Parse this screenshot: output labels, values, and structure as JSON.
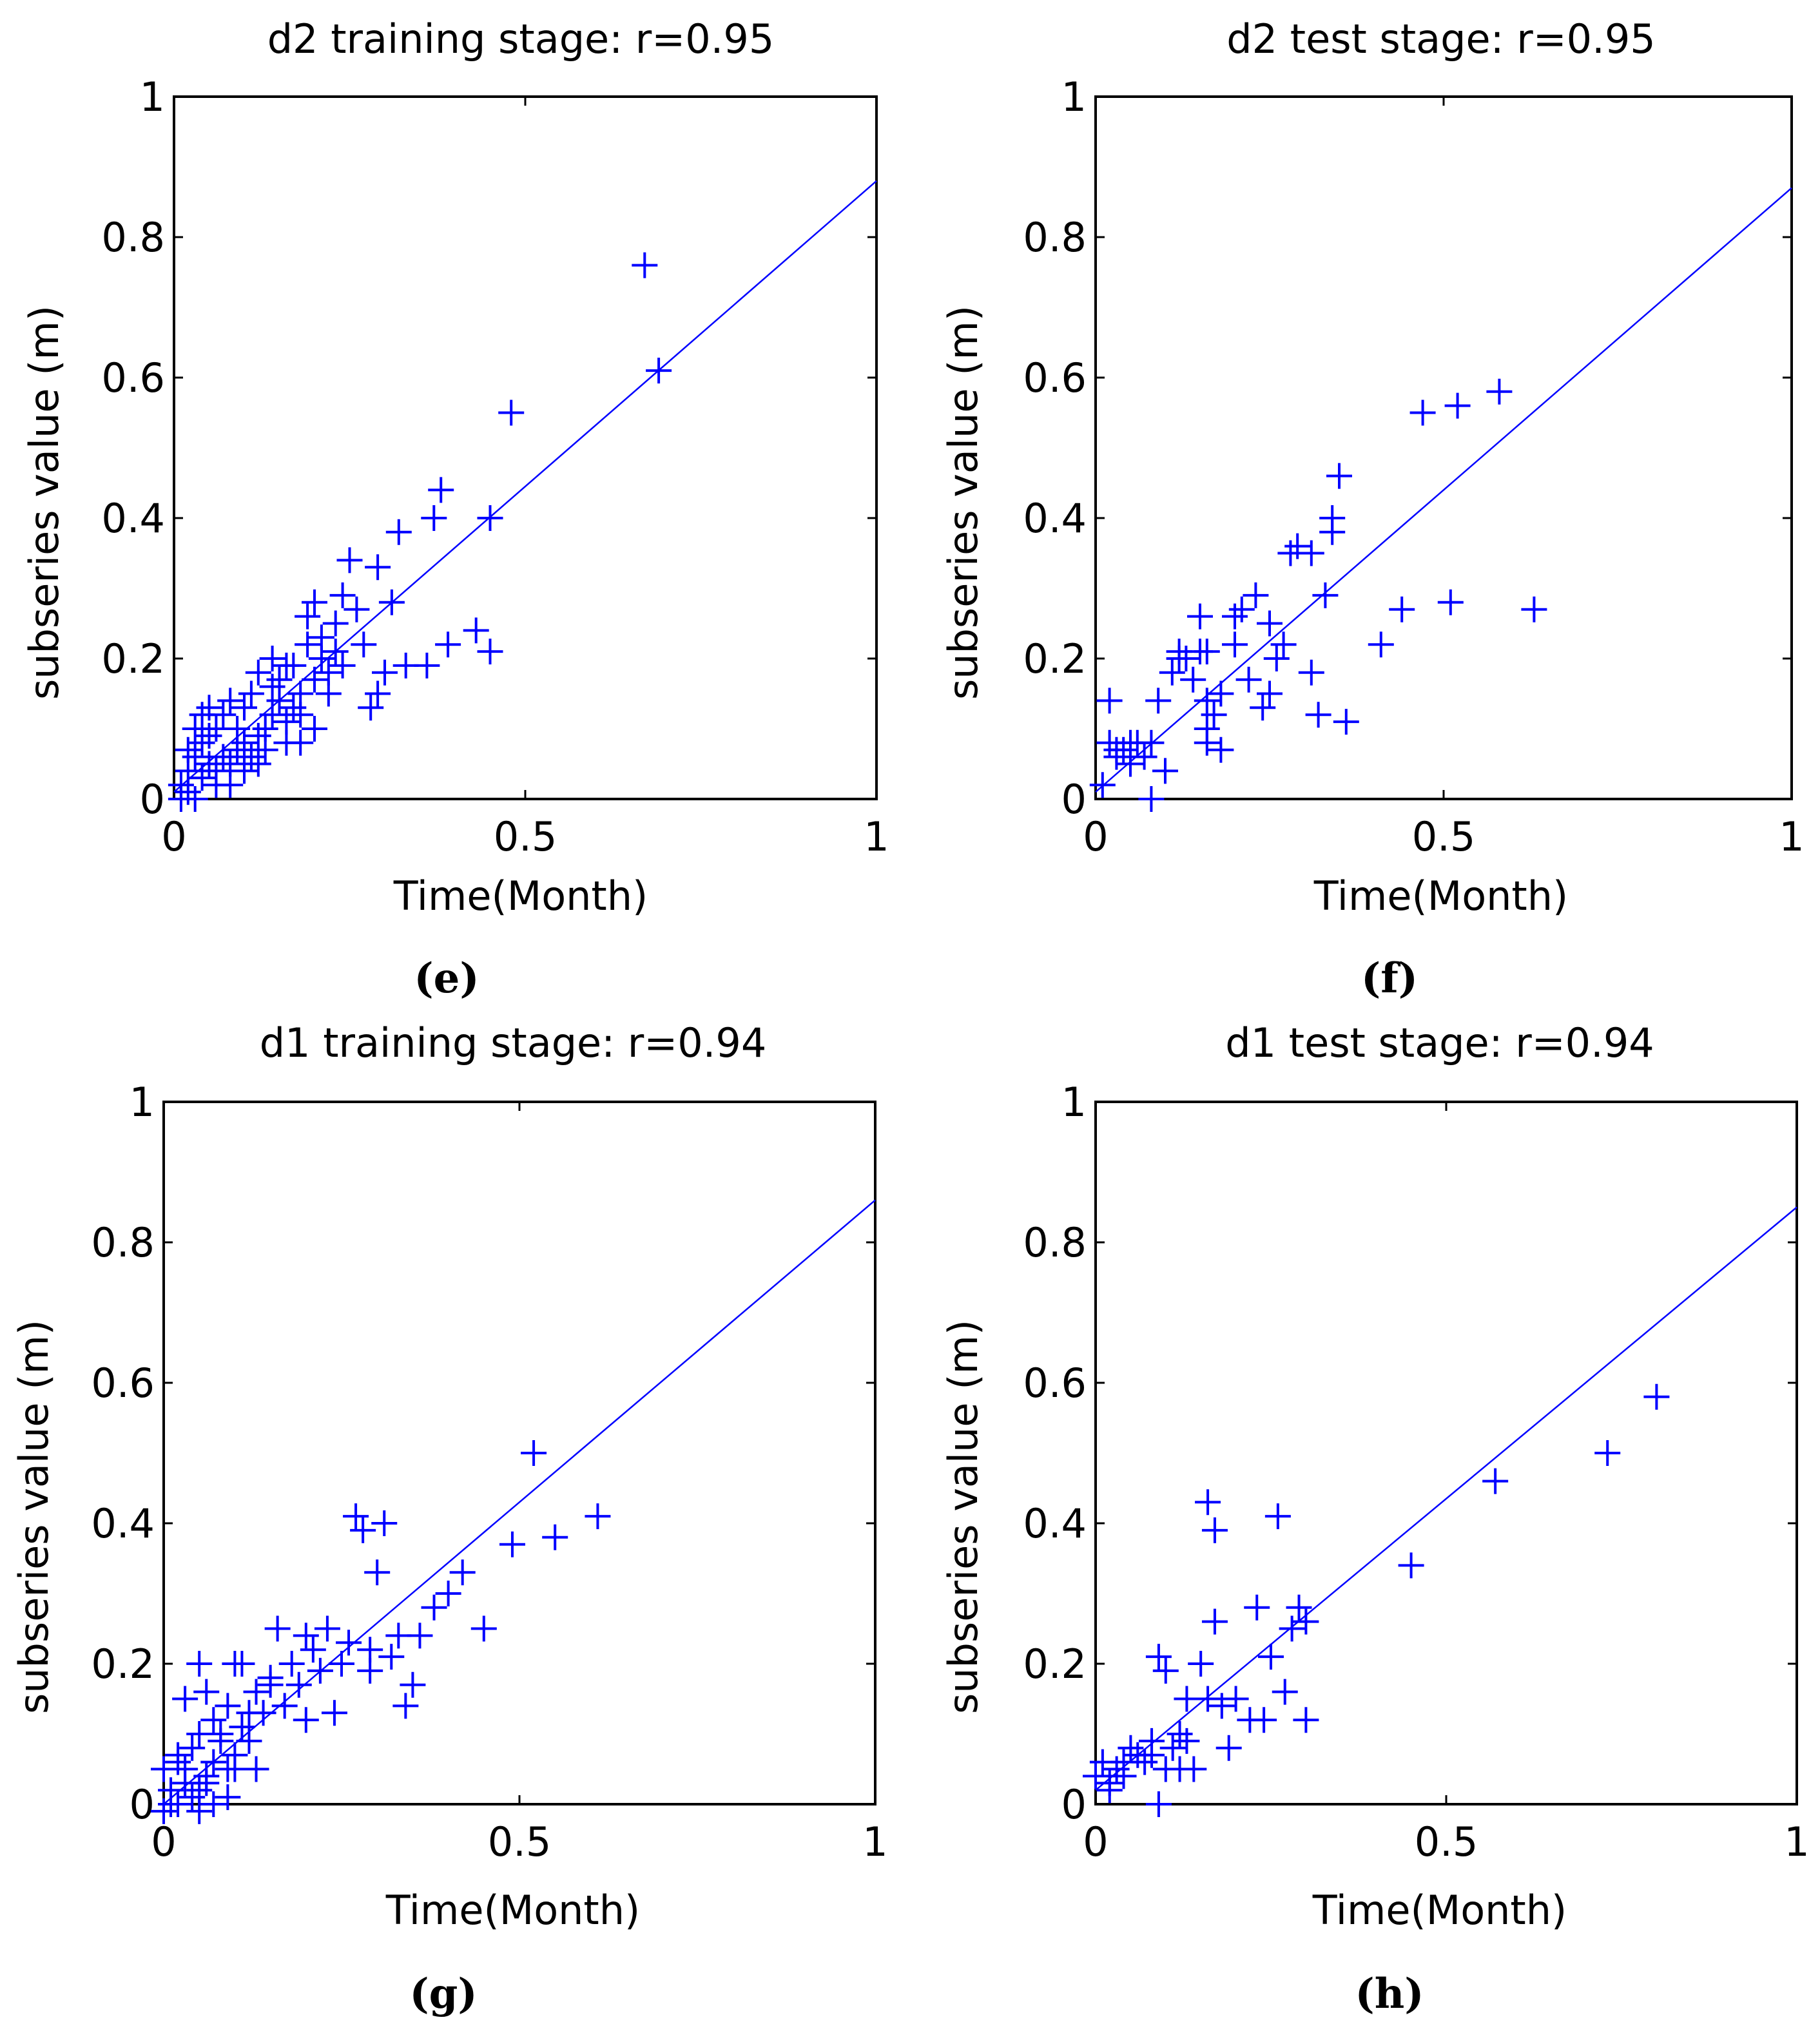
{
  "colors": {
    "series": "#0000ff",
    "axes": "#000000",
    "background": "#ffffff"
  },
  "chart_data": [
    {
      "type": "scatter",
      "panel_label": "e",
      "title": "d2 training stage: r=0.95",
      "xlabel": "Time(Month)",
      "ylabel": "subseries value (m)",
      "xlim": [
        0,
        1
      ],
      "ylim": [
        0,
        1
      ],
      "x_ticks": [
        0,
        0.5,
        1
      ],
      "x_tick_labels": [
        "0",
        "0.5",
        "1"
      ],
      "y_ticks": [
        0,
        0.2,
        0.4,
        0.6,
        0.8,
        1
      ],
      "y_tick_labels": [
        "0",
        "0.2",
        "0.4",
        "0.6",
        "0.8",
        "1"
      ],
      "marker": "+",
      "fit_line": {
        "x": [
          0,
          1
        ],
        "y": [
          0.01,
          0.88
        ]
      },
      "points": [
        [
          0.01,
          0.02
        ],
        [
          0.02,
          0.04
        ],
        [
          0.01,
          0.0
        ],
        [
          0.03,
          0.06
        ],
        [
          0.02,
          0.01
        ],
        [
          0.04,
          0.03
        ],
        [
          0.05,
          0.05
        ],
        [
          0.03,
          0.0
        ],
        [
          0.02,
          0.07
        ],
        [
          0.04,
          0.08
        ],
        [
          0.06,
          0.04
        ],
        [
          0.05,
          0.09
        ],
        [
          0.07,
          0.06
        ],
        [
          0.06,
          0.1
        ],
        [
          0.08,
          0.05
        ],
        [
          0.07,
          0.12
        ],
        [
          0.09,
          0.07
        ],
        [
          0.08,
          0.14
        ],
        [
          0.1,
          0.08
        ],
        [
          0.09,
          0.1
        ],
        [
          0.11,
          0.06
        ],
        [
          0.1,
          0.13
        ],
        [
          0.12,
          0.09
        ],
        [
          0.11,
          0.15
        ],
        [
          0.13,
          0.1
        ],
        [
          0.12,
          0.18
        ],
        [
          0.14,
          0.12
        ],
        [
          0.13,
          0.07
        ],
        [
          0.15,
          0.14
        ],
        [
          0.14,
          0.2
        ],
        [
          0.16,
          0.11
        ],
        [
          0.15,
          0.17
        ],
        [
          0.17,
          0.13
        ],
        [
          0.16,
          0.08
        ],
        [
          0.18,
          0.15
        ],
        [
          0.17,
          0.19
        ],
        [
          0.19,
          0.22
        ],
        [
          0.18,
          0.12
        ],
        [
          0.2,
          0.17
        ],
        [
          0.19,
          0.26
        ],
        [
          0.21,
          0.2
        ],
        [
          0.2,
          0.28
        ],
        [
          0.22,
          0.18
        ],
        [
          0.21,
          0.23
        ],
        [
          0.23,
          0.25
        ],
        [
          0.22,
          0.15
        ],
        [
          0.24,
          0.29
        ],
        [
          0.23,
          0.21
        ],
        [
          0.25,
          0.34
        ],
        [
          0.24,
          0.19
        ],
        [
          0.26,
          0.27
        ],
        [
          0.27,
          0.22
        ],
        [
          0.29,
          0.33
        ],
        [
          0.28,
          0.13
        ],
        [
          0.29,
          0.15
        ],
        [
          0.3,
          0.18
        ],
        [
          0.31,
          0.28
        ],
        [
          0.32,
          0.38
        ],
        [
          0.33,
          0.19
        ],
        [
          0.36,
          0.19
        ],
        [
          0.37,
          0.4
        ],
        [
          0.38,
          0.44
        ],
        [
          0.39,
          0.22
        ],
        [
          0.43,
          0.24
        ],
        [
          0.45,
          0.4
        ],
        [
          0.45,
          0.21
        ],
        [
          0.48,
          0.55
        ],
        [
          0.67,
          0.76
        ],
        [
          0.69,
          0.61
        ],
        [
          0.05,
          0.13
        ],
        [
          0.06,
          0.02
        ],
        [
          0.08,
          0.02
        ],
        [
          0.1,
          0.04
        ],
        [
          0.12,
          0.05
        ],
        [
          0.03,
          0.1
        ],
        [
          0.04,
          0.12
        ],
        [
          0.14,
          0.16
        ],
        [
          0.16,
          0.19
        ],
        [
          0.18,
          0.08
        ],
        [
          0.2,
          0.1
        ]
      ]
    },
    {
      "type": "scatter",
      "panel_label": "f",
      "title": "d2 test stage: r=0.95",
      "xlabel": "Time(Month)",
      "ylabel": "subseries value (m)",
      "xlim": [
        0,
        1
      ],
      "ylim": [
        0,
        1
      ],
      "x_ticks": [
        0,
        0.5,
        1
      ],
      "x_tick_labels": [
        "0",
        "0.5",
        "1"
      ],
      "y_ticks": [
        0,
        0.2,
        0.4,
        0.6,
        0.8,
        1
      ],
      "y_tick_labels": [
        "0",
        "0.2",
        "0.4",
        "0.6",
        "0.8",
        "1"
      ],
      "marker": "+",
      "fit_line": {
        "x": [
          0,
          1
        ],
        "y": [
          0.01,
          0.87
        ]
      },
      "points": [
        [
          0.01,
          0.02
        ],
        [
          0.02,
          0.14
        ],
        [
          0.02,
          0.08
        ],
        [
          0.03,
          0.07
        ],
        [
          0.04,
          0.07
        ],
        [
          0.05,
          0.05
        ],
        [
          0.06,
          0.08
        ],
        [
          0.07,
          0.06
        ],
        [
          0.08,
          0.08
        ],
        [
          0.08,
          0.0
        ],
        [
          0.09,
          0.14
        ],
        [
          0.1,
          0.04
        ],
        [
          0.11,
          0.18
        ],
        [
          0.12,
          0.2
        ],
        [
          0.13,
          0.2
        ],
        [
          0.15,
          0.21
        ],
        [
          0.15,
          0.26
        ],
        [
          0.16,
          0.14
        ],
        [
          0.16,
          0.1
        ],
        [
          0.16,
          0.08
        ],
        [
          0.17,
          0.12
        ],
        [
          0.18,
          0.15
        ],
        [
          0.18,
          0.07
        ],
        [
          0.2,
          0.22
        ],
        [
          0.2,
          0.26
        ],
        [
          0.21,
          0.27
        ],
        [
          0.22,
          0.17
        ],
        [
          0.23,
          0.29
        ],
        [
          0.24,
          0.13
        ],
        [
          0.25,
          0.25
        ],
        [
          0.26,
          0.2
        ],
        [
          0.27,
          0.22
        ],
        [
          0.28,
          0.35
        ],
        [
          0.29,
          0.36
        ],
        [
          0.31,
          0.35
        ],
        [
          0.31,
          0.18
        ],
        [
          0.32,
          0.12
        ],
        [
          0.33,
          0.29
        ],
        [
          0.34,
          0.38
        ],
        [
          0.34,
          0.4
        ],
        [
          0.35,
          0.46
        ],
        [
          0.36,
          0.11
        ],
        [
          0.41,
          0.22
        ],
        [
          0.44,
          0.27
        ],
        [
          0.47,
          0.55
        ],
        [
          0.51,
          0.28
        ],
        [
          0.52,
          0.56
        ],
        [
          0.58,
          0.58
        ],
        [
          0.63,
          0.27
        ],
        [
          0.14,
          0.17
        ],
        [
          0.12,
          0.21
        ],
        [
          0.03,
          0.06
        ],
        [
          0.05,
          0.08
        ],
        [
          0.16,
          0.21
        ],
        [
          0.25,
          0.15
        ]
      ]
    },
    {
      "type": "scatter",
      "panel_label": "g",
      "title": "d1 training stage: r=0.94",
      "xlabel": "Time(Month)",
      "ylabel": "subseries value (m)",
      "xlim": [
        0,
        1
      ],
      "ylim": [
        0,
        1
      ],
      "x_ticks": [
        0,
        0.5,
        1
      ],
      "x_tick_labels": [
        "0",
        "0.5",
        "1"
      ],
      "y_ticks": [
        0,
        0.2,
        0.4,
        0.6,
        0.8,
        1
      ],
      "y_tick_labels": [
        "0",
        "0.2",
        "0.4",
        "0.6",
        "0.8",
        "1"
      ],
      "marker": "+",
      "fit_line": {
        "x": [
          0,
          1
        ],
        "y": [
          0.0,
          0.86
        ]
      },
      "points": [
        [
          0.0,
          0.05
        ],
        [
          0.01,
          0.02
        ],
        [
          0.0,
          -0.01
        ],
        [
          0.02,
          0.06
        ],
        [
          0.01,
          0.0
        ],
        [
          0.03,
          0.03
        ],
        [
          0.02,
          0.07
        ],
        [
          0.04,
          0.01
        ],
        [
          0.03,
          0.05
        ],
        [
          0.05,
          0.02
        ],
        [
          0.04,
          0.08
        ],
        [
          0.06,
          0.04
        ],
        [
          0.05,
          0.1
        ],
        [
          0.07,
          0.06
        ],
        [
          0.06,
          0.03
        ],
        [
          0.08,
          0.09
        ],
        [
          0.07,
          0.12
        ],
        [
          0.09,
          0.05
        ],
        [
          0.08,
          0.1
        ],
        [
          0.1,
          0.07
        ],
        [
          0.09,
          0.14
        ],
        [
          0.11,
          0.11
        ],
        [
          0.1,
          0.05
        ],
        [
          0.12,
          0.13
        ],
        [
          0.11,
          0.2
        ],
        [
          0.13,
          0.16
        ],
        [
          0.12,
          0.09
        ],
        [
          0.14,
          0.13
        ],
        [
          0.15,
          0.18
        ],
        [
          0.16,
          0.25
        ],
        [
          0.17,
          0.14
        ],
        [
          0.18,
          0.2
        ],
        [
          0.19,
          0.17
        ],
        [
          0.2,
          0.24
        ],
        [
          0.21,
          0.22
        ],
        [
          0.22,
          0.19
        ],
        [
          0.23,
          0.25
        ],
        [
          0.24,
          0.13
        ],
        [
          0.25,
          0.2
        ],
        [
          0.26,
          0.23
        ],
        [
          0.27,
          0.41
        ],
        [
          0.28,
          0.39
        ],
        [
          0.29,
          0.22
        ],
        [
          0.3,
          0.33
        ],
        [
          0.31,
          0.4
        ],
        [
          0.32,
          0.21
        ],
        [
          0.33,
          0.24
        ],
        [
          0.34,
          0.14
        ],
        [
          0.35,
          0.17
        ],
        [
          0.36,
          0.24
        ],
        [
          0.38,
          0.28
        ],
        [
          0.4,
          0.3
        ],
        [
          0.42,
          0.33
        ],
        [
          0.45,
          0.25
        ],
        [
          0.49,
          0.37
        ],
        [
          0.52,
          0.5
        ],
        [
          0.55,
          0.38
        ],
        [
          0.61,
          0.41
        ],
        [
          0.05,
          0.2
        ],
        [
          0.06,
          0.16
        ],
        [
          0.1,
          0.2
        ],
        [
          0.03,
          0.15
        ],
        [
          0.02,
          0.0
        ],
        [
          0.05,
          -0.01
        ],
        [
          0.07,
          0.0
        ],
        [
          0.09,
          0.01
        ],
        [
          0.13,
          0.05
        ],
        [
          0.15,
          0.17
        ],
        [
          0.2,
          0.12
        ],
        [
          0.29,
          0.19
        ]
      ]
    },
    {
      "type": "scatter",
      "panel_label": "h",
      "title": "d1 test stage: r=0.94",
      "xlabel": "Time(Month)",
      "ylabel": "subseries value (m)",
      "xlim": [
        0,
        1
      ],
      "ylim": [
        0,
        1
      ],
      "x_ticks": [
        0,
        0.5,
        1
      ],
      "x_tick_labels": [
        "0",
        "0.5",
        "1"
      ],
      "y_ticks": [
        0,
        0.2,
        0.4,
        0.6,
        0.8,
        1
      ],
      "y_tick_labels": [
        "0",
        "0.2",
        "0.4",
        "0.6",
        "0.8",
        "1"
      ],
      "marker": "+",
      "fit_line": {
        "x": [
          0,
          1
        ],
        "y": [
          0.02,
          0.85
        ]
      },
      "points": [
        [
          0.0,
          0.04
        ],
        [
          0.01,
          0.06
        ],
        [
          0.02,
          0.03
        ],
        [
          0.03,
          0.05
        ],
        [
          0.04,
          0.04
        ],
        [
          0.05,
          0.08
        ],
        [
          0.06,
          0.07
        ],
        [
          0.07,
          0.06
        ],
        [
          0.08,
          0.09
        ],
        [
          0.09,
          0.0
        ],
        [
          0.09,
          0.21
        ],
        [
          0.1,
          0.19
        ],
        [
          0.1,
          0.05
        ],
        [
          0.11,
          0.08
        ],
        [
          0.12,
          0.1
        ],
        [
          0.13,
          0.15
        ],
        [
          0.14,
          0.05
        ],
        [
          0.15,
          0.2
        ],
        [
          0.16,
          0.43
        ],
        [
          0.17,
          0.39
        ],
        [
          0.17,
          0.26
        ],
        [
          0.18,
          0.14
        ],
        [
          0.19,
          0.08
        ],
        [
          0.2,
          0.15
        ],
        [
          0.22,
          0.12
        ],
        [
          0.23,
          0.28
        ],
        [
          0.24,
          0.12
        ],
        [
          0.25,
          0.21
        ],
        [
          0.26,
          0.41
        ],
        [
          0.27,
          0.16
        ],
        [
          0.28,
          0.25
        ],
        [
          0.29,
          0.28
        ],
        [
          0.3,
          0.26
        ],
        [
          0.3,
          0.12
        ],
        [
          0.45,
          0.34
        ],
        [
          0.57,
          0.46
        ],
        [
          0.73,
          0.5
        ],
        [
          0.8,
          0.58
        ],
        [
          0.02,
          0.02
        ],
        [
          0.04,
          0.06
        ],
        [
          0.08,
          0.07
        ],
        [
          0.12,
          0.05
        ],
        [
          0.16,
          0.15
        ],
        [
          0.13,
          0.09
        ]
      ]
    }
  ],
  "captions": [
    "(e)",
    "(f)",
    "(g)",
    "(h)"
  ]
}
